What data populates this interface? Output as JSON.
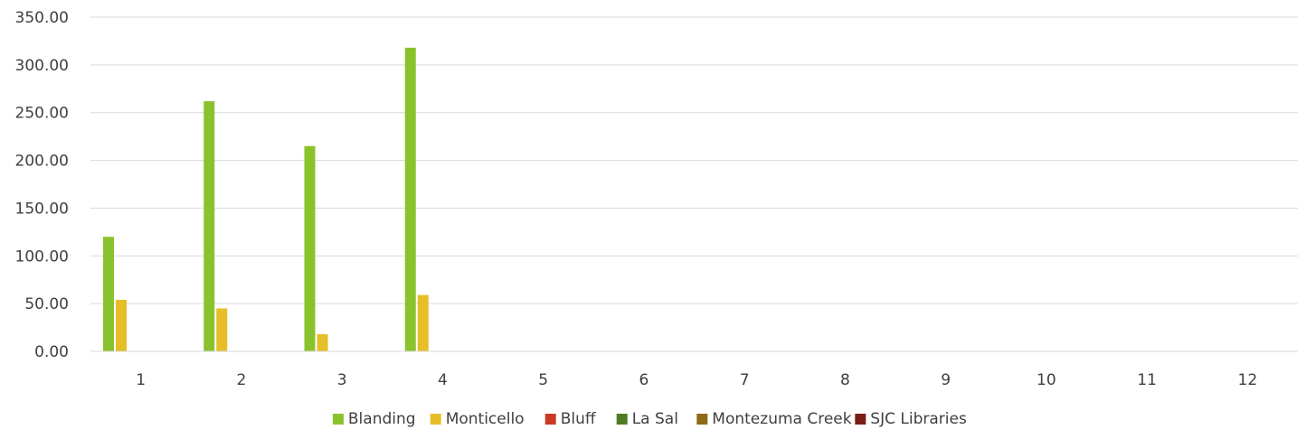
{
  "chart_data": {
    "type": "bar",
    "categories": [
      "1",
      "2",
      "3",
      "4",
      "5",
      "6",
      "7",
      "8",
      "9",
      "10",
      "11",
      "12"
    ],
    "series": [
      {
        "name": "Blanding",
        "color": "#8ac22d",
        "values": [
          120,
          262,
          215,
          318,
          null,
          null,
          null,
          null,
          null,
          null,
          null,
          null
        ]
      },
      {
        "name": "Monticello",
        "color": "#e5be28",
        "values": [
          54,
          45,
          18,
          59,
          null,
          null,
          null,
          null,
          null,
          null,
          null,
          null
        ]
      },
      {
        "name": "Bluff",
        "color": "#c83a24",
        "values": [
          null,
          null,
          null,
          null,
          null,
          null,
          null,
          null,
          null,
          null,
          null,
          null
        ]
      },
      {
        "name": "La Sal",
        "color": "#4f7a1f",
        "values": [
          null,
          null,
          null,
          null,
          null,
          null,
          null,
          null,
          null,
          null,
          null,
          null
        ]
      },
      {
        "name": "Montezuma Creek",
        "color": "#8d6c14",
        "values": [
          null,
          null,
          null,
          null,
          null,
          null,
          null,
          null,
          null,
          null,
          null,
          null
        ]
      },
      {
        "name": "SJC Libraries",
        "color": "#7b1e16",
        "values": [
          null,
          null,
          null,
          null,
          null,
          null,
          null,
          null,
          null,
          null,
          null,
          null
        ]
      }
    ],
    "y_ticks": [
      "0.00",
      "50.00",
      "100.00",
      "150.00",
      "200.00",
      "250.00",
      "300.00",
      "350.00"
    ],
    "ylim": [
      0,
      350
    ],
    "grid": true,
    "legend_position": "bottom",
    "title": "",
    "xlabel": "",
    "ylabel": ""
  }
}
